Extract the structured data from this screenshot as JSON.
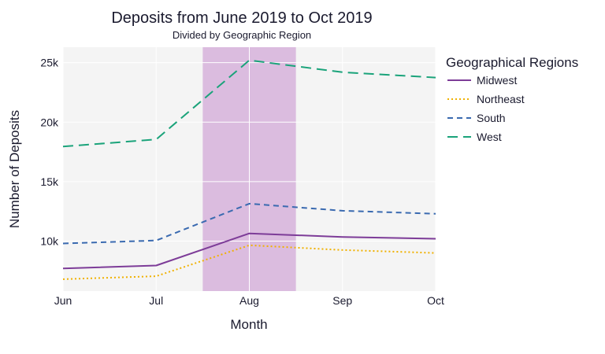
{
  "chart_data": {
    "type": "line",
    "title": "Deposits from June 2019 to Oct 2019",
    "subtitle": "Divided by Geographic Region",
    "xlabel": "Month",
    "ylabel": "Number of Deposits",
    "categories": [
      "Jun",
      "Jul",
      "Aug",
      "Sep",
      "Oct"
    ],
    "y_ticks": [
      10000,
      15000,
      20000,
      25000
    ],
    "y_tick_labels": [
      "10k",
      "15k",
      "20k",
      "25k"
    ],
    "ylim": [
      5800,
      26300
    ],
    "grid": true,
    "legend": {
      "title": "Geographical Regions",
      "position": "right"
    },
    "highlight_band": {
      "from": 1.5,
      "to": 2.5,
      "color": "#d9b8dd"
    },
    "series": [
      {
        "name": "Midwest",
        "values": [
          7700,
          7950,
          10650,
          10350,
          10200
        ],
        "color": "#7d3c98",
        "dash": "solid"
      },
      {
        "name": "Northeast",
        "values": [
          6800,
          7050,
          9650,
          9250,
          9000
        ],
        "color": "#f0b100",
        "dash": "dot"
      },
      {
        "name": "South",
        "values": [
          9800,
          10050,
          13150,
          12550,
          12300
        ],
        "color": "#3a6ab0",
        "dash": "dash"
      },
      {
        "name": "West",
        "values": [
          17950,
          18550,
          25200,
          24200,
          23750
        ],
        "color": "#1aa37a",
        "dash": "longdash"
      }
    ]
  }
}
